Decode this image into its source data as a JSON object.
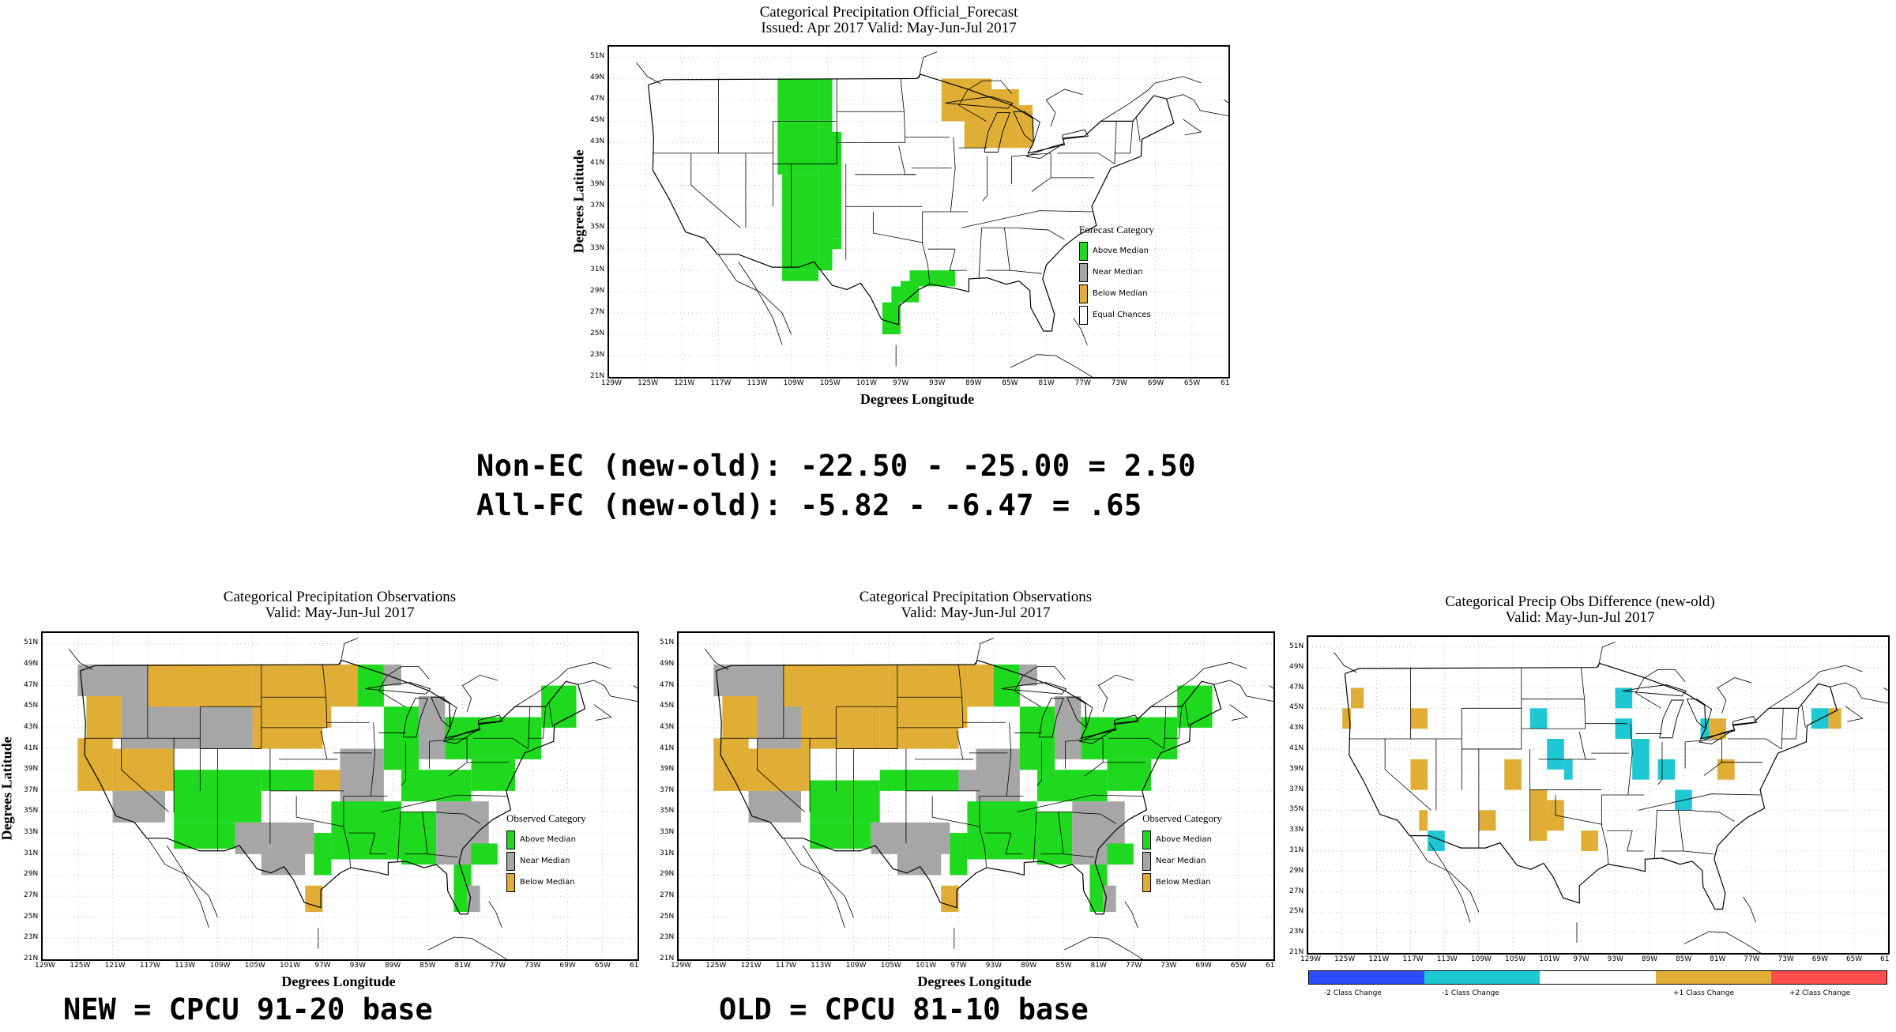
{
  "colors": {
    "above": "#1ed91e",
    "near": "#a6a6a6",
    "below": "#e0ad35",
    "equal": "#ffffff",
    "minus2": "#2f4bff",
    "minus1": "#1ec8d2",
    "zero": "#ffffff",
    "plus1": "#e0ad35",
    "plus2": "#ff4d4d"
  },
  "axes": {
    "ylabel": "Degrees Latitude",
    "xlabel": "Degrees Longitude",
    "lat_ticks": [
      "51N",
      "49N",
      "47N",
      "45N",
      "43N",
      "41N",
      "39N",
      "37N",
      "35N",
      "33N",
      "31N",
      "29N",
      "27N",
      "25N",
      "23N",
      "21N"
    ],
    "lon_ticks": [
      "129W",
      "125W",
      "121W",
      "117W",
      "113W",
      "109W",
      "105W",
      "101W",
      "97W",
      "93W",
      "89W",
      "85W",
      "81W",
      "77W",
      "73W",
      "69W",
      "65W",
      "61"
    ]
  },
  "forecast": {
    "title1": "Categorical Precipitation Official_Forecast",
    "title2": "Issued: Apr 2017 Valid: May-Jun-Jul 2017",
    "legend_title": "Forecast Category",
    "legend": [
      "Above Median",
      "Near Median",
      "Below Median",
      "Equal Chances"
    ]
  },
  "stats": {
    "line1": "Non-EC (new-old): -22.50 - -25.00 = 2.50",
    "line2": "All-FC (new-old): -5.82 - -6.47 = .65"
  },
  "obs_new": {
    "title1": "Categorical Precipitation Observations",
    "title2": "Valid: May-Jun-Jul 2017",
    "legend_title": "Observed Category",
    "legend": [
      "Above Median",
      "Near Median",
      "Below Median"
    ],
    "caption": "NEW = CPCU 91-20 base"
  },
  "obs_old": {
    "title1": "Categorical Precipitation Observations",
    "title2": "Valid: May-Jun-Jul 2017",
    "legend_title": "Observed Category",
    "legend": [
      "Above Median",
      "Near Median",
      "Below Median"
    ],
    "caption": "OLD = CPCU 81-10 base"
  },
  "diff": {
    "title1": "Categorical Precip Obs Difference (new-old)",
    "title2": "Valid: May-Jun-Jul 2017",
    "colorbar_labels": [
      "-2 Class Change",
      "-1 Class Change",
      "+1 Class Change",
      "+2 Class Change"
    ]
  }
}
